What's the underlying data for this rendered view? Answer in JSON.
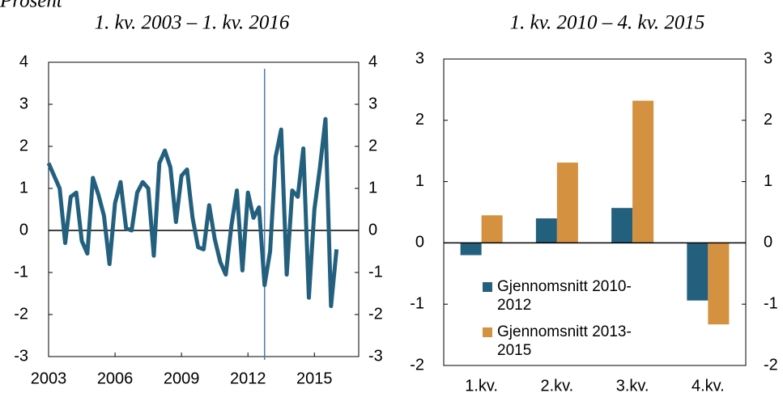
{
  "unit_label": "Prosent",
  "chart_data": [
    {
      "type": "line",
      "title": "1. kv. 2003 – 1. kv. 2016",
      "x": [
        2003,
        2003.25,
        2003.5,
        2003.75,
        2004,
        2004.25,
        2004.5,
        2004.75,
        2005,
        2005.25,
        2005.5,
        2005.75,
        2006,
        2006.25,
        2006.5,
        2006.75,
        2007,
        2007.25,
        2007.5,
        2007.75,
        2008,
        2008.25,
        2008.5,
        2008.75,
        2009,
        2009.25,
        2009.5,
        2009.75,
        2010,
        2010.25,
        2010.5,
        2010.75,
        2011,
        2011.25,
        2011.5,
        2011.75,
        2012,
        2012.25,
        2012.5,
        2012.75,
        2013,
        2013.25,
        2013.5,
        2013.75,
        2014,
        2014.25,
        2014.5,
        2014.75,
        2015,
        2015.25,
        2015.5,
        2015.75,
        2016
      ],
      "series": [
        {
          "color": "#23607e",
          "values": [
            1.6,
            1.3,
            1.0,
            -0.3,
            0.8,
            0.9,
            -0.25,
            -0.55,
            1.25,
            0.85,
            0.35,
            -0.8,
            0.65,
            1.15,
            0.05,
            0.0,
            0.9,
            1.15,
            1.0,
            -0.6,
            1.6,
            1.9,
            1.5,
            0.2,
            1.3,
            1.45,
            0.3,
            -0.4,
            -0.45,
            0.6,
            -0.2,
            -0.75,
            -1.05,
            0.1,
            0.95,
            -0.95,
            0.9,
            0.3,
            0.55,
            -1.3,
            -0.5,
            1.75,
            2.4,
            -1.05,
            0.95,
            0.8,
            1.95,
            -1.6,
            0.5,
            1.5,
            2.65,
            -1.8,
            -0.45
          ]
        }
      ],
      "reference_x": 2012.75,
      "reference_color": "#4a7bb0",
      "xlim": [
        2003,
        2017
      ],
      "xticks": [
        2003,
        2006,
        2009,
        2012,
        2015
      ],
      "ylim": [
        -3,
        4
      ],
      "yticks": [
        -3,
        -2,
        -1,
        0,
        1,
        2,
        3,
        4
      ],
      "y2lim": [
        -3,
        4
      ],
      "y2ticks": [
        -3,
        -2,
        -1,
        0,
        1,
        2,
        3,
        4
      ]
    },
    {
      "type": "bar",
      "title": "1. kv. 2010 – 4. kv. 2015",
      "categories": [
        "1.kv.",
        "2.kv.",
        "3.kv.",
        "4.kv."
      ],
      "series": [
        {
          "name": "Gjennomsnitt 2010-2012",
          "color": "#23607e",
          "values": [
            -0.2,
            0.4,
            0.57,
            -0.94
          ]
        },
        {
          "name": "Gjennomsnitt 2013-2015",
          "color": "#d4913f",
          "values": [
            0.45,
            1.31,
            2.32,
            -1.33
          ]
        }
      ],
      "ylim": [
        -2,
        3
      ],
      "yticks": [
        -2,
        -1,
        0,
        1,
        2,
        3
      ],
      "y2lim": [
        -2,
        3
      ],
      "y2ticks": [
        -2,
        -1,
        0,
        1,
        2,
        3
      ],
      "legend": "lower-left"
    }
  ]
}
